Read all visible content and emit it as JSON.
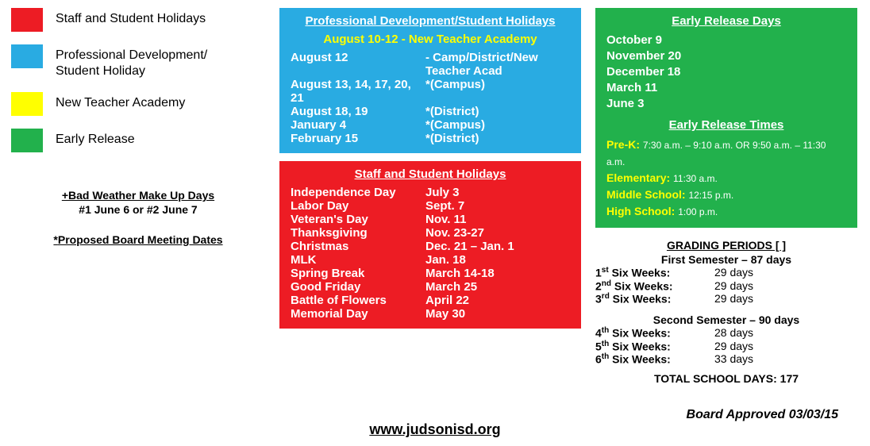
{
  "colors": {
    "red": "#ed1c24",
    "blue": "#29abe2",
    "yellow": "#ffff00",
    "green": "#22b14c"
  },
  "legend": [
    {
      "color": "#ed1c24",
      "label": "Staff and Student Holidays"
    },
    {
      "color": "#29abe2",
      "label": "Professional Development/\nStudent Holiday"
    },
    {
      "color": "#ffff00",
      "label": "New Teacher Academy"
    },
    {
      "color": "#22b14c",
      "label": "Early Release"
    }
  ],
  "notes": {
    "bw_title": "+Bad Weather Make Up Days",
    "bw_line": "#1 June 6  or  #2 June 7",
    "pbm": "Proposed Board Meeting Dates"
  },
  "pd": {
    "title": "Professional Development/Student Holidays",
    "sub": "August 10-12 - New Teacher Academy",
    "rows": [
      {
        "c1": "August 12",
        "c2": "-  Camp/District/New Teacher Acad"
      },
      {
        "c1": "August 13, 14, 17, 20, 21",
        "c2": "*(Campus)"
      },
      {
        "c1": "August 18, 19",
        "c2": "*(District)"
      },
      {
        "c1": "January 4",
        "c2": "*(Campus)"
      },
      {
        "c1": "February 15",
        "c2": "*(District)"
      }
    ]
  },
  "holidays": {
    "title": "Staff and Student Holidays",
    "rows": [
      {
        "c1": "Independence Day",
        "c2": "July 3"
      },
      {
        "c1": "Labor Day",
        "c2": "Sept. 7"
      },
      {
        "c1": "Veteran's Day",
        "c2": "Nov. 11"
      },
      {
        "c1": "Thanksgiving",
        "c2": "Nov. 23-27"
      },
      {
        "c1": "Christmas",
        "c2": "Dec. 21 – Jan. 1"
      },
      {
        "c1": "MLK",
        "c2": "Jan. 18"
      },
      {
        "c1": "Spring Break",
        "c2": "March 14-18"
      },
      {
        "c1": "Good Friday",
        "c2": "March 25"
      },
      {
        "c1": "Battle of Flowers",
        "c2": "April 22"
      },
      {
        "c1": "Memorial Day",
        "c2": "May 30"
      }
    ]
  },
  "early": {
    "title": "Early Release Days",
    "days": [
      "October 9",
      "November 20",
      "December 18",
      "March 11",
      "June 3"
    ],
    "times_title": "Early Release Times",
    "times": [
      {
        "lab": "Pre-K:",
        "val": "7:30 a.m. – 9:10 a.m. OR  9:50 a.m. – 11:30 a.m."
      },
      {
        "lab": "Elementary:",
        "val": "11:30 a.m."
      },
      {
        "lab": "Middle School:",
        "val": "12:15 p.m."
      },
      {
        "lab": "High School:",
        "val": "1:00 p.m."
      }
    ]
  },
  "grading": {
    "title": "GRADING PERIODS [ ]",
    "sem1_title": "First Semester – 87 days",
    "sem1": [
      {
        "n": "1",
        "suf": "st",
        "days": "29 days"
      },
      {
        "n": "2",
        "suf": "nd",
        "days": "29 days"
      },
      {
        "n": "3",
        "suf": "rd",
        "days": "29 days"
      }
    ],
    "sem2_title": "Second Semester – 90 days",
    "sem2": [
      {
        "n": "4",
        "suf": "th",
        "days": "28 days"
      },
      {
        "n": "5",
        "suf": "th",
        "days": "29 days"
      },
      {
        "n": "6",
        "suf": "th",
        "days": "33 days"
      }
    ],
    "total": "TOTAL SCHOOL DAYS:  177"
  },
  "approved": "Board Approved 03/03/15",
  "url": "www.judsonisd.org"
}
